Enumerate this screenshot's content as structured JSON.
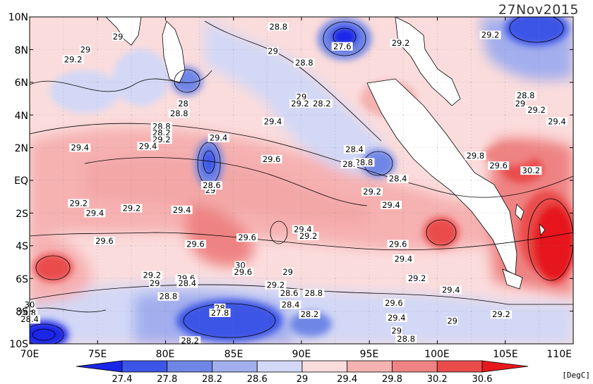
{
  "date": "27Nov2015",
  "y_ticks": [
    "10N",
    "8N",
    "6N",
    "4N",
    "2N",
    "EQ",
    "2S",
    "4S",
    "6S",
    "8S",
    "10S"
  ],
  "x_ticks": [
    "70E",
    "75E",
    "80E",
    "85E",
    "90E",
    "95E",
    "100E",
    "105E",
    "110E"
  ],
  "colorbar": {
    "labels": [
      "27.4",
      "27.8",
      "28.2",
      "28.6",
      "29",
      "29.4",
      "29.8",
      "30.2",
      "30.6"
    ],
    "colors": [
      "#1a26e8",
      "#3d55e6",
      "#6f86e6",
      "#a2aeee",
      "#d2d8f6",
      "#fbdcdc",
      "#f6b1b1",
      "#ef8383",
      "#ea4c4c",
      "#e6191c"
    ],
    "unit": "[DegC]"
  },
  "contour_labels": [
    {
      "t": "28.8",
      "lon": 88.3,
      "lat": 9.4
    },
    {
      "t": "29",
      "lon": 76.5,
      "lat": 8.8
    },
    {
      "t": "29",
      "lon": 74.1,
      "lat": 8.0
    },
    {
      "t": "29.2",
      "lon": 73.2,
      "lat": 7.4
    },
    {
      "t": "29",
      "lon": 87.9,
      "lat": 7.9
    },
    {
      "t": "28.8",
      "lon": 90.2,
      "lat": 7.2
    },
    {
      "t": "27.6",
      "lon": 93.0,
      "lat": 8.2
    },
    {
      "t": "29.2",
      "lon": 97.3,
      "lat": 8.4
    },
    {
      "t": "29.2",
      "lon": 103.9,
      "lat": 8.9
    },
    {
      "t": "29",
      "lon": 90.0,
      "lat": 5.1
    },
    {
      "t": "29.2",
      "lon": 89.9,
      "lat": 4.7
    },
    {
      "t": "28.2",
      "lon": 91.5,
      "lat": 4.7
    },
    {
      "t": "28",
      "lon": 81.3,
      "lat": 4.7
    },
    {
      "t": "28.8",
      "lon": 81.0,
      "lat": 4.1
    },
    {
      "t": "29.4",
      "lon": 87.9,
      "lat": 3.6
    },
    {
      "t": "28.8",
      "lon": 79.7,
      "lat": 3.3
    },
    {
      "t": "28.2",
      "lon": 79.7,
      "lat": 2.9
    },
    {
      "t": "29.2",
      "lon": 79.7,
      "lat": 2.5
    },
    {
      "t": "29.4",
      "lon": 73.7,
      "lat": 2.0
    },
    {
      "t": "29.4",
      "lon": 78.7,
      "lat": 2.1
    },
    {
      "t": "29.4",
      "lon": 83.9,
      "lat": 2.6
    },
    {
      "t": "29.6",
      "lon": 87.8,
      "lat": 1.3
    },
    {
      "t": "28.4",
      "lon": 93.9,
      "lat": 1.9
    },
    {
      "t": "28.8",
      "lon": 94.6,
      "lat": 1.1
    },
    {
      "t": "28.",
      "lon": 93.5,
      "lat": 1.0
    },
    {
      "t": "28.4",
      "lon": 97.1,
      "lat": 0.1
    },
    {
      "t": "29.8",
      "lon": 102.8,
      "lat": 1.5
    },
    {
      "t": "29.6",
      "lon": 104.5,
      "lat": 0.9
    },
    {
      "t": "30.2",
      "lon": 106.9,
      "lat": 0.6
    },
    {
      "t": "28.8",
      "lon": 106.5,
      "lat": 5.2
    },
    {
      "t": "29",
      "lon": 106.1,
      "lat": 4.7
    },
    {
      "t": "29.2",
      "lon": 107.3,
      "lat": 4.3
    },
    {
      "t": "29.4",
      "lon": 108.8,
      "lat": 3.6
    },
    {
      "t": "29",
      "lon": 83.3,
      "lat": -0.6
    },
    {
      "t": "28.6",
      "lon": 83.4,
      "lat": -0.3
    },
    {
      "t": "29.2",
      "lon": 73.6,
      "lat": -1.4
    },
    {
      "t": "29.4",
      "lon": 74.8,
      "lat": -2.0
    },
    {
      "t": "29.2",
      "lon": 77.5,
      "lat": -1.7
    },
    {
      "t": "29.4",
      "lon": 81.2,
      "lat": -1.8
    },
    {
      "t": "29.2",
      "lon": 95.2,
      "lat": -0.7
    },
    {
      "t": "29.4",
      "lon": 96.6,
      "lat": -1.5
    },
    {
      "t": "29.4",
      "lon": 90.1,
      "lat": -3.0
    },
    {
      "t": "29.2",
      "lon": 90.5,
      "lat": -3.4
    },
    {
      "t": "29.6",
      "lon": 75.5,
      "lat": -3.7
    },
    {
      "t": "29.6",
      "lon": 82.2,
      "lat": -3.9
    },
    {
      "t": "29.6",
      "lon": 86.0,
      "lat": -3.5
    },
    {
      "t": "29.6",
      "lon": 97.1,
      "lat": -3.9
    },
    {
      "t": "29.4",
      "lon": 97.5,
      "lat": -4.8
    },
    {
      "t": "30",
      "lon": 85.5,
      "lat": -5.2
    },
    {
      "t": "29.6",
      "lon": 85.7,
      "lat": -5.6
    },
    {
      "t": "29",
      "lon": 89.0,
      "lat": -5.6
    },
    {
      "t": "29.2",
      "lon": 79.0,
      "lat": -5.8
    },
    {
      "t": "29",
      "lon": 79.2,
      "lat": -6.3
    },
    {
      "t": "29.6",
      "lon": 81.5,
      "lat": -6.0
    },
    {
      "t": "28.4",
      "lon": 81.6,
      "lat": -6.3
    },
    {
      "t": "29.2",
      "lon": 88.1,
      "lat": -6.4
    },
    {
      "t": "29.2",
      "lon": 98.5,
      "lat": -6.0
    },
    {
      "t": "28.8",
      "lon": 80.2,
      "lat": -7.1
    },
    {
      "t": "28.6",
      "lon": 89.1,
      "lat": -6.9
    },
    {
      "t": "28.8",
      "lon": 90.9,
      "lat": -6.9
    },
    {
      "t": "28.4",
      "lon": 89.2,
      "lat": -7.6
    },
    {
      "t": "29.4",
      "lon": 101.0,
      "lat": -6.7
    },
    {
      "t": "30",
      "lon": 70.0,
      "lat": -7.6
    },
    {
      "t": "29.6",
      "lon": 96.8,
      "lat": -7.5
    },
    {
      "t": "28",
      "lon": 84.0,
      "lat": -7.8
    },
    {
      "t": "27.8",
      "lon": 84.0,
      "lat": -8.1
    },
    {
      "t": "28.2",
      "lon": 90.6,
      "lat": -8.2
    },
    {
      "t": "29.8",
      "lon": 69.8,
      "lat": -8.1
    },
    {
      "t": "28.4",
      "lon": 70.0,
      "lat": -8.5
    },
    {
      "t": "29.4",
      "lon": 97.0,
      "lat": -8.4
    },
    {
      "t": "29",
      "lon": 101.1,
      "lat": -8.6
    },
    {
      "t": "29.2",
      "lon": 104.7,
      "lat": -8.2
    },
    {
      "t": "29",
      "lon": 97.0,
      "lat": -9.2
    },
    {
      "t": "28.2",
      "lon": 81.8,
      "lat": -9.8
    },
    {
      "t": "28.8",
      "lon": 97.7,
      "lat": -9.7
    }
  ]
}
